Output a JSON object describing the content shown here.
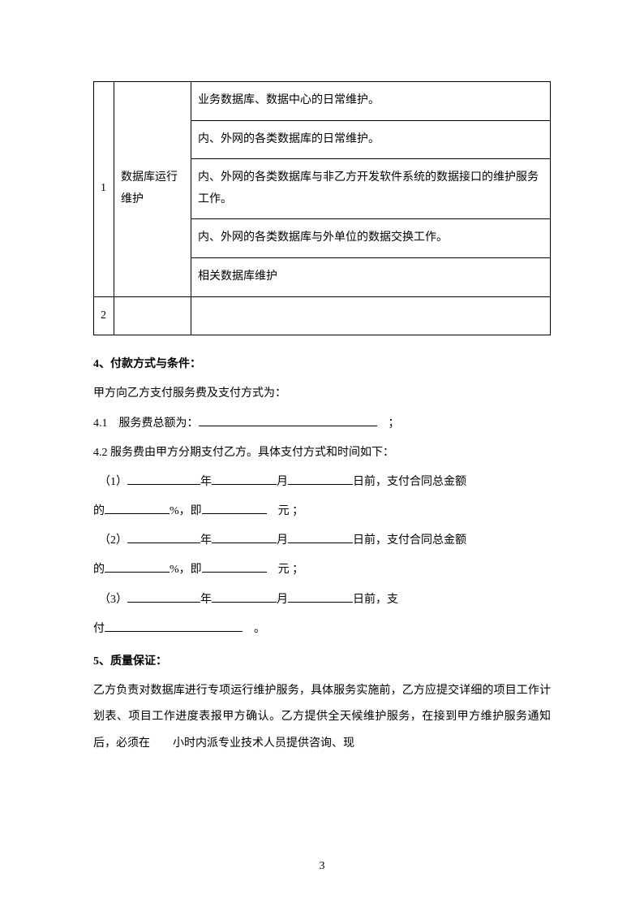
{
  "table": {
    "rows": [
      {
        "num": "1",
        "label": "数据库运行维护",
        "cells": [
          "业务数据库、数据中心的日常维护。",
          "内、外网的各类数据库的日常维护。",
          "内、外网的各类数据库与非乙方开发软件系统的数据接口的维护服务工作。",
          "内、外网的各类数据库与外单位的数据交换工作。",
          "相关数据库维护"
        ]
      },
      {
        "num": "2",
        "label": "",
        "cells": [
          ""
        ]
      }
    ]
  },
  "section4": {
    "heading": "4、付款方式与条件：",
    "intro": "甲方向乙方支付服务费及支付方式为：",
    "line4_1_prefix": "4.1　服务费总额为：",
    "line4_1_suffix": "　；",
    "line4_2": "4.2 服务费由甲方分期支付乙方。具体支付方式和时间如下：",
    "item_num_1": "（1）",
    "item_num_2": "（2）",
    "item_num_3": "（3）",
    "year": "年",
    "month": "月",
    "before_day": "日前，支付合同总金额",
    "before_day_pay": "日前，支",
    "de": "的",
    "pct_ji": "%，即",
    "yuan_semi": "　元 ；",
    "pay": "付",
    "period": "。"
  },
  "section5": {
    "heading": "5、质量保证：",
    "body_1": "乙方负责对数据库进行专项运行维护服务，具体服务实施前，乙方应提交详细的项目工作计划表、项目工作进度表报甲方确认。乙方提供全天候维护服务，在接到甲方维护服务通知后，必须在　　小时内派专业技术人员提供咨询、现"
  },
  "pageNumber": "3"
}
